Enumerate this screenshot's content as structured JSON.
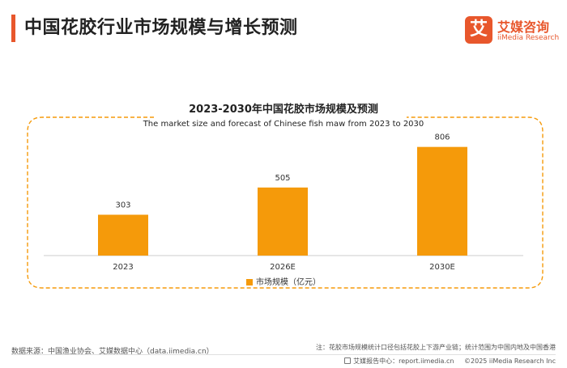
{
  "header": {
    "title": "中国花胶行业市场规模与增长预测",
    "logo_mark": "艾",
    "logo_cn": "艾媒咨询",
    "logo_en": "iiMedia Research"
  },
  "footer": {
    "source": "数据来源：中国渔业协会、艾媒数据中心（data.iimedia.cn）",
    "note": "注：花胶市场规模统计口径包括花胶上下游产业链；统计范围为中国内地及中国香港",
    "report_center": "艾媒报告中心：report.iimedia.cn",
    "copyright": "©2025  iiMedia Research  Inc"
  },
  "colors": {
    "accent": "#e8572c",
    "bar": "#f59a0a",
    "frame": "#f59a0a"
  },
  "chart_data": {
    "type": "bar",
    "title": "2023-2030年中国花胶市场规模及预测",
    "subtitle": "The market size and forecast of Chinese fish maw from 2023 to 2030",
    "categories": [
      "2023",
      "2026E",
      "2030E"
    ],
    "series": [
      {
        "name": "市场规模（亿元）",
        "values": [
          303,
          505,
          806
        ]
      }
    ],
    "ylim": [
      0,
      900
    ],
    "grid": false,
    "legend_position": "bottom"
  }
}
